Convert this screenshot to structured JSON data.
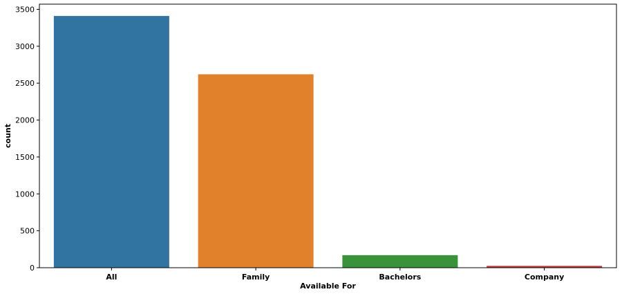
{
  "chart_data": {
    "type": "bar",
    "categories": [
      "All",
      "Family",
      "Bachelors",
      "Company"
    ],
    "values": [
      3410,
      2620,
      170,
      25
    ],
    "colors": [
      "#3274a1",
      "#e1812c",
      "#3a923a",
      "#c03d3e"
    ],
    "title": "",
    "xlabel": "Available For",
    "ylabel": "count",
    "ylim": [
      0,
      3570
    ],
    "yticks": [
      0,
      500,
      1000,
      1500,
      2000,
      2500,
      3000,
      3500
    ],
    "grid": false
  }
}
